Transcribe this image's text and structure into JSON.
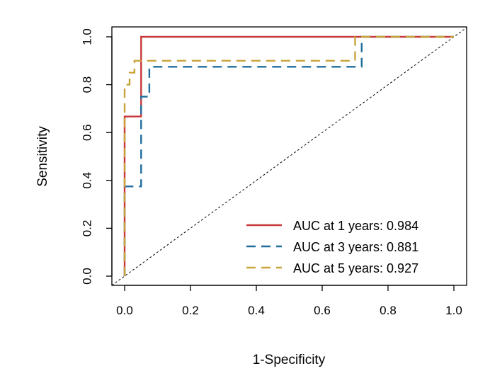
{
  "chart_data": {
    "type": "line",
    "title": "",
    "xlabel": "1-Specificity",
    "ylabel": "Sensitivity",
    "xlim": [
      0,
      1
    ],
    "ylim": [
      0,
      1
    ],
    "x_ticks": [
      "0.0",
      "0.2",
      "0.4",
      "0.6",
      "0.8",
      "1.0"
    ],
    "y_ticks": [
      "0.0",
      "0.2",
      "0.4",
      "0.6",
      "0.8",
      "1.0"
    ],
    "grid": false,
    "legend_position": "bottom-right",
    "reference_line": {
      "x": [
        0,
        1
      ],
      "y": [
        0,
        1
      ],
      "color": "#000000",
      "style": "dashed"
    },
    "series": [
      {
        "name": "AUC at 1 years: 0.984",
        "color": "#C8393B",
        "style": "solid",
        "x": [
          0,
          0,
          0.05,
          0.05,
          1
        ],
        "y": [
          0,
          0.667,
          0.667,
          1.0,
          1.0
        ]
      },
      {
        "name": "AUC at 3 years: 0.881",
        "color": "#1F6E9E",
        "style": "dashed",
        "x": [
          0,
          0,
          0.05,
          0.05,
          0.075,
          0.075,
          0.72,
          0.72,
          1
        ],
        "y": [
          0,
          0.375,
          0.375,
          0.75,
          0.75,
          0.875,
          0.875,
          1.0,
          1.0
        ]
      },
      {
        "name": "AUC at 5 years: 0.927",
        "color": "#C9A43B",
        "style": "dashed",
        "x": [
          0,
          0,
          0.015,
          0.015,
          0.03,
          0.03,
          0.7,
          0.7,
          1
        ],
        "y": [
          0,
          0.8,
          0.8,
          0.85,
          0.85,
          0.9,
          0.9,
          1.0,
          1.0
        ]
      }
    ]
  }
}
